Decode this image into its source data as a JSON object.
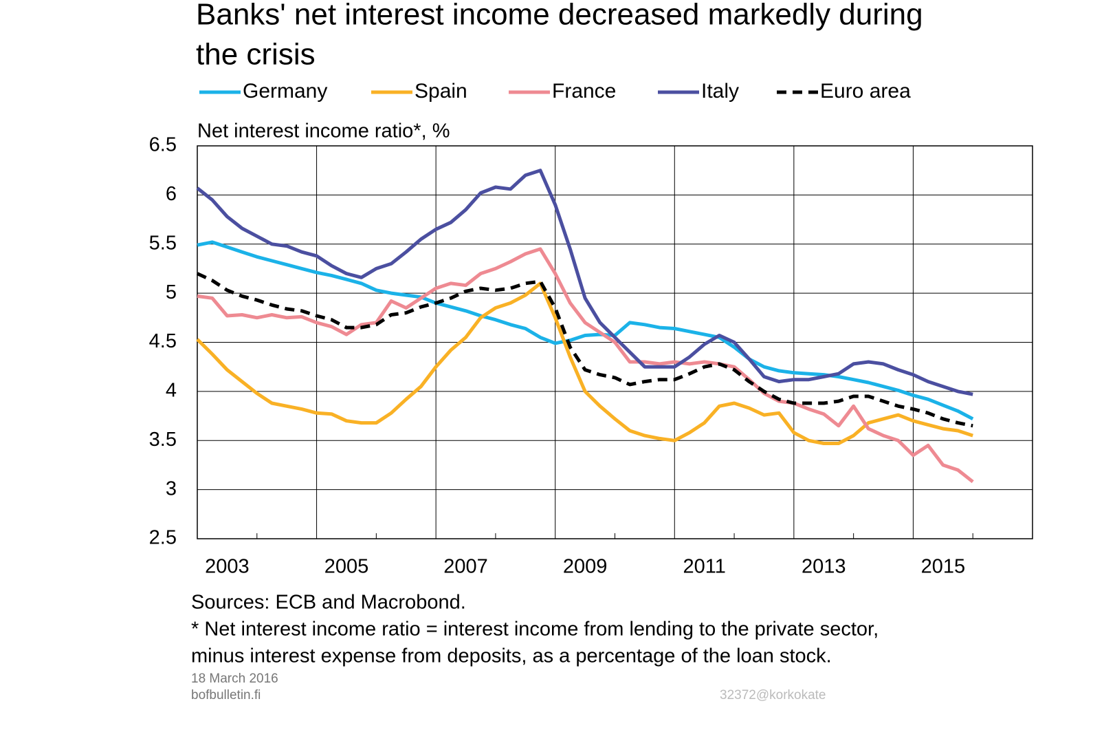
{
  "chart_data": {
    "type": "line",
    "title_lines": [
      "Banks' net interest income decreased markedly during",
      "the crisis"
    ],
    "y_label": "Net interest income ratio*, %",
    "x": [
      2003,
      2003.25,
      2003.5,
      2003.75,
      2004,
      2004.25,
      2004.5,
      2004.75,
      2005,
      2005.25,
      2005.5,
      2005.75,
      2006,
      2006.25,
      2006.5,
      2006.75,
      2007,
      2007.25,
      2007.5,
      2007.75,
      2008,
      2008.25,
      2008.5,
      2008.75,
      2009,
      2009.25,
      2009.5,
      2009.75,
      2010,
      2010.25,
      2010.5,
      2010.75,
      2011,
      2011.25,
      2011.5,
      2011.75,
      2012,
      2012.25,
      2012.5,
      2012.75,
      2013,
      2013.25,
      2013.5,
      2013.75,
      2014,
      2014.25,
      2014.5,
      2014.75,
      2015,
      2015.25,
      2015.5,
      2015.75,
      2016
    ],
    "series": [
      {
        "name": "Germany",
        "color": "#1bb2e8",
        "dashed": false,
        "values": [
          5.49,
          5.52,
          5.47,
          5.42,
          5.37,
          5.33,
          5.29,
          5.25,
          5.21,
          5.18,
          5.14,
          5.1,
          5.03,
          5.0,
          4.98,
          4.96,
          4.9,
          4.86,
          4.82,
          4.77,
          4.73,
          4.68,
          4.64,
          4.55,
          4.49,
          4.52,
          4.57,
          4.58,
          4.57,
          4.7,
          4.68,
          4.65,
          4.64,
          4.61,
          4.58,
          4.55,
          4.45,
          4.33,
          4.25,
          4.21,
          4.19,
          4.18,
          4.17,
          4.15,
          4.12,
          4.09,
          4.05,
          4.01,
          3.96,
          3.92,
          3.86,
          3.8,
          3.72
        ]
      },
      {
        "name": "Spain",
        "color": "#f9b125",
        "dashed": false,
        "values": [
          4.53,
          4.38,
          4.22,
          4.1,
          3.98,
          3.88,
          3.85,
          3.82,
          3.78,
          3.77,
          3.7,
          3.68,
          3.68,
          3.78,
          3.92,
          4.05,
          4.25,
          4.42,
          4.55,
          4.75,
          4.85,
          4.9,
          4.98,
          5.1,
          4.75,
          4.35,
          4.0,
          3.85,
          3.72,
          3.6,
          3.55,
          3.52,
          3.5,
          3.58,
          3.68,
          3.85,
          3.88,
          3.83,
          3.76,
          3.78,
          3.58,
          3.5,
          3.47,
          3.47,
          3.55,
          3.68,
          3.72,
          3.76,
          3.7,
          3.66,
          3.62,
          3.6,
          3.55
        ]
      },
      {
        "name": "France",
        "color": "#ee8a92",
        "dashed": false,
        "values": [
          4.97,
          4.95,
          4.77,
          4.78,
          4.75,
          4.78,
          4.75,
          4.76,
          4.7,
          4.66,
          4.58,
          4.68,
          4.7,
          4.92,
          4.85,
          4.95,
          5.05,
          5.1,
          5.08,
          5.2,
          5.25,
          5.32,
          5.4,
          5.45,
          5.2,
          4.9,
          4.7,
          4.6,
          4.5,
          4.3,
          4.3,
          4.28,
          4.3,
          4.28,
          4.3,
          4.28,
          4.25,
          4.12,
          3.98,
          3.9,
          3.88,
          3.82,
          3.77,
          3.65,
          3.85,
          3.62,
          3.55,
          3.5,
          3.35,
          3.45,
          3.25,
          3.2,
          3.08
        ]
      },
      {
        "name": "Italy",
        "color": "#4b4fa0",
        "dashed": false,
        "values": [
          6.07,
          5.95,
          5.78,
          5.66,
          5.58,
          5.5,
          5.48,
          5.42,
          5.38,
          5.28,
          5.2,
          5.16,
          5.25,
          5.3,
          5.42,
          5.55,
          5.65,
          5.72,
          5.85,
          6.02,
          6.08,
          6.06,
          6.2,
          6.25,
          5.9,
          5.45,
          4.95,
          4.7,
          4.55,
          4.4,
          4.25,
          4.25,
          4.25,
          4.35,
          4.48,
          4.57,
          4.5,
          4.33,
          4.15,
          4.1,
          4.12,
          4.12,
          4.15,
          4.18,
          4.28,
          4.3,
          4.28,
          4.22,
          4.17,
          4.1,
          4.05,
          4.0,
          3.97
        ]
      },
      {
        "name": "Euro area",
        "color": "#000000",
        "dashed": true,
        "values": [
          5.2,
          5.13,
          5.03,
          4.97,
          4.93,
          4.88,
          4.84,
          4.82,
          4.77,
          4.73,
          4.65,
          4.65,
          4.68,
          4.78,
          4.8,
          4.86,
          4.9,
          4.95,
          5.02,
          5.05,
          5.03,
          5.05,
          5.1,
          5.12,
          4.85,
          4.45,
          4.22,
          4.17,
          4.14,
          4.07,
          4.1,
          4.12,
          4.12,
          4.18,
          4.25,
          4.28,
          4.22,
          4.1,
          4.0,
          3.92,
          3.88,
          3.88,
          3.88,
          3.9,
          3.95,
          3.95,
          3.9,
          3.85,
          3.82,
          3.78,
          3.72,
          3.68,
          3.65
        ]
      }
    ],
    "xlim": [
      2003,
      2017
    ],
    "xticks": [
      {
        "value": 2003,
        "label": "2003"
      },
      {
        "value": 2005,
        "label": "2005"
      },
      {
        "value": 2007,
        "label": "2007"
      },
      {
        "value": 2009,
        "label": "2009"
      },
      {
        "value": 2011,
        "label": "2011"
      },
      {
        "value": 2013,
        "label": "2013"
      },
      {
        "value": 2015,
        "label": "2015"
      }
    ],
    "minor_xticks": [
      2004,
      2006,
      2008,
      2010,
      2012,
      2014,
      2016
    ],
    "ylim": [
      2.5,
      6.5
    ],
    "yticks": [
      2.5,
      3,
      3.5,
      4,
      4.5,
      5,
      5.5,
      6,
      6.5
    ],
    "grid": true,
    "sources": "Sources: ECB and Macrobond.",
    "footnote_lines": [
      "* Net interest income ratio = interest income from lending to the private sector,",
      "minus interest expense from deposits, as a percentage of the loan stock."
    ],
    "date": "18 March 2016",
    "site": "bofbulletin.fi",
    "code": "32372@korkokate"
  }
}
